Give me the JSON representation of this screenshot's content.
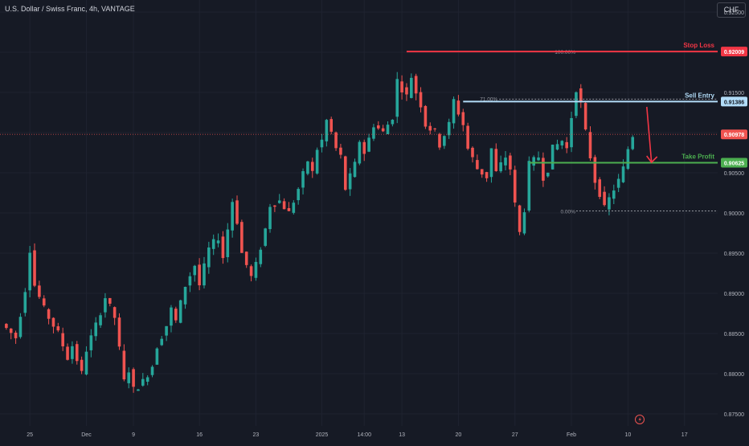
{
  "header": {
    "title": "U.S. Dollar / Swiss Franc, 4h, VANTAGE",
    "currency_button": "CHF"
  },
  "colors": {
    "background": "#161a25",
    "up": "#26a69a",
    "down": "#ef5350",
    "stop_loss": "#f23645",
    "sell_entry": "#b2dcf8",
    "take_profit": "#4caf50",
    "axis_text": "#b2b5be"
  },
  "chart_data": {
    "type": "candlestick",
    "title": "U.S. Dollar / Swiss Franc, 4h, VANTAGE",
    "y_ticks": [
      "0.92500",
      "0.92000",
      "0.91500",
      "0.91000",
      "0.90500",
      "0.90000",
      "0.89500",
      "0.89000",
      "0.88500",
      "0.88000",
      "0.87500"
    ],
    "ylim": [
      0.8735,
      0.9265
    ],
    "x_ticks": [
      {
        "label": "25",
        "index": 6
      },
      {
        "label": "Dec",
        "index": 18
      },
      {
        "label": "9",
        "index": 28
      },
      {
        "label": "16",
        "index": 42
      },
      {
        "label": "23",
        "index": 54
      },
      {
        "label": "2025",
        "index": 68
      },
      {
        "label": "14:00",
        "index": 77
      },
      {
        "label": "13",
        "index": 85
      },
      {
        "label": "20",
        "index": 97
      },
      {
        "label": "27",
        "index": 109
      },
      {
        "label": "Feb",
        "index": 121
      },
      {
        "label": "10",
        "index": 133
      },
      {
        "label": "17",
        "index": 145
      }
    ],
    "close_path": [
      [
        0,
        0.8862
      ],
      [
        3,
        0.8845
      ],
      [
        5,
        0.8905
      ],
      [
        6,
        0.8955
      ],
      [
        7,
        0.891
      ],
      [
        9,
        0.888
      ],
      [
        12,
        0.885
      ],
      [
        14,
        0.882
      ],
      [
        15,
        0.8835
      ],
      [
        17,
        0.88
      ],
      [
        18,
        0.883
      ],
      [
        20,
        0.886
      ],
      [
        22,
        0.8895
      ],
      [
        24,
        0.887
      ],
      [
        25,
        0.883
      ],
      [
        26,
        0.879
      ],
      [
        27,
        0.8805
      ],
      [
        28,
        0.878
      ],
      [
        30,
        0.879
      ],
      [
        32,
        0.881
      ],
      [
        33,
        0.8835
      ],
      [
        35,
        0.886
      ],
      [
        36,
        0.888
      ],
      [
        37,
        0.8865
      ],
      [
        39,
        0.891
      ],
      [
        41,
        0.8935
      ],
      [
        42,
        0.891
      ],
      [
        44,
        0.8955
      ],
      [
        46,
        0.897
      ],
      [
        47,
        0.8945
      ],
      [
        49,
        0.9015
      ],
      [
        50,
        0.899
      ],
      [
        51,
        0.895
      ],
      [
        53,
        0.892
      ],
      [
        54,
        0.8935
      ],
      [
        56,
        0.898
      ],
      [
        57,
        0.901
      ],
      [
        59,
        0.9015
      ],
      [
        61,
        0.9
      ],
      [
        63,
        0.903
      ],
      [
        65,
        0.9065
      ],
      [
        66,
        0.905
      ],
      [
        67,
        0.908
      ],
      [
        68,
        0.909
      ],
      [
        69,
        0.9115
      ],
      [
        70,
        0.91
      ],
      [
        71,
        0.908
      ],
      [
        72,
        0.907
      ],
      [
        73,
        0.903
      ],
      [
        75,
        0.906
      ],
      [
        76,
        0.909
      ],
      [
        77,
        0.9075
      ],
      [
        79,
        0.911
      ],
      [
        81,
        0.91
      ],
      [
        83,
        0.912
      ],
      [
        84,
        0.9165
      ],
      [
        86,
        0.9145
      ],
      [
        87,
        0.917
      ],
      [
        88,
        0.915
      ],
      [
        89,
        0.9135
      ],
      [
        90,
        0.911
      ],
      [
        92,
        0.91
      ],
      [
        93,
        0.9085
      ],
      [
        95,
        0.911
      ],
      [
        96,
        0.914
      ],
      [
        98,
        0.911
      ],
      [
        99,
        0.908
      ],
      [
        101,
        0.9055
      ],
      [
        103,
        0.9045
      ],
      [
        104,
        0.908
      ],
      [
        105,
        0.905
      ],
      [
        107,
        0.907
      ],
      [
        108,
        0.9055
      ],
      [
        109,
        0.901
      ],
      [
        110,
        0.8975
      ],
      [
        111,
        0.9005
      ],
      [
        112,
        0.906
      ],
      [
        114,
        0.907
      ],
      [
        115,
        0.9045
      ],
      [
        116,
        0.9055
      ],
      [
        117,
        0.908
      ],
      [
        119,
        0.909
      ],
      [
        120,
        0.908
      ],
      [
        121,
        0.912
      ],
      [
        122,
        0.9155
      ],
      [
        123,
        0.9135
      ],
      [
        124,
        0.91
      ],
      [
        125,
        0.907
      ],
      [
        126,
        0.904
      ],
      [
        127,
        0.9025
      ],
      [
        128,
        0.9005
      ],
      [
        130,
        0.903
      ],
      [
        131,
        0.904
      ],
      [
        132,
        0.9055
      ],
      [
        133,
        0.908
      ],
      [
        134,
        0.9097
      ]
    ],
    "levels": [
      {
        "name": "Stop Loss",
        "value": 0.92009,
        "label": "0.92009",
        "start_index": 86
      },
      {
        "name": "Sell Entry",
        "value": 0.91386,
        "label": "0.91386",
        "start_index": 98,
        "fib": "71.00%"
      },
      {
        "name": "Take Profit",
        "value": 0.90625,
        "label": "0.90625",
        "start_index": 112
      }
    ],
    "current_price": {
      "value": 0.90978,
      "label": "0.90978"
    },
    "fib_100": {
      "value": 0.92009,
      "label": "100.00%",
      "start_index": 122
    },
    "fib_0": {
      "value": 0.90025,
      "label": "0.00%",
      "start_index": 122
    },
    "arrow": {
      "from_index": 137,
      "from_value": 0.9132,
      "to_index": 138,
      "to_value": 0.9063
    }
  }
}
